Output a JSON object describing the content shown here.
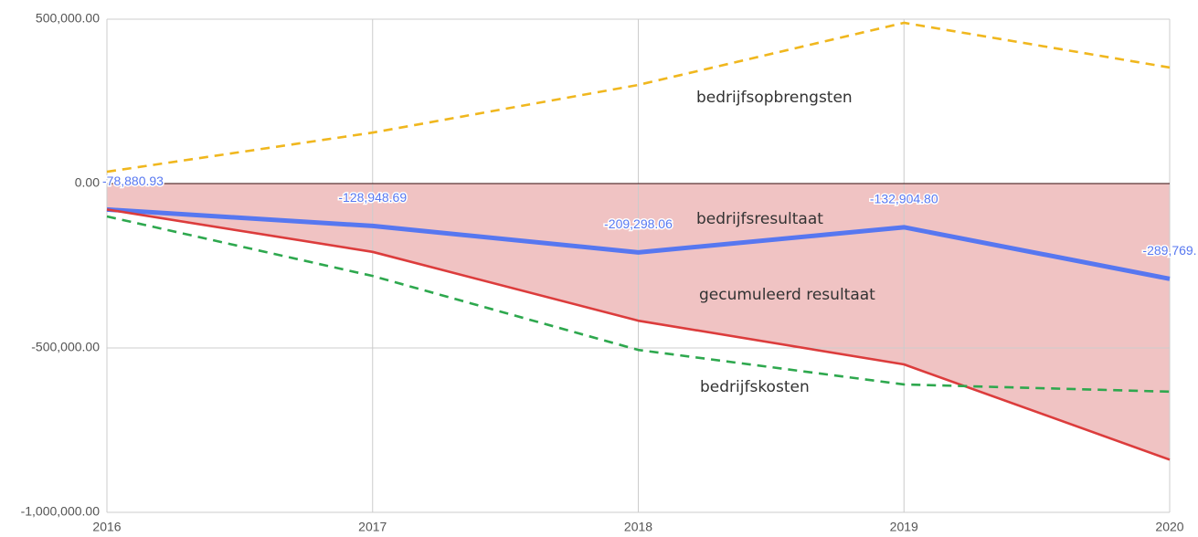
{
  "chart_data": {
    "type": "line",
    "categories": [
      "2016",
      "2017",
      "2018",
      "2019",
      "2020"
    ],
    "series": [
      {
        "name": "bedrijfsopbrengsten",
        "color": "#f0b71e",
        "dashed": true,
        "values": [
          36000,
          155000,
          300000,
          489000,
          353000
        ]
      },
      {
        "name": "bedrijfsresultaat",
        "color": "#5777f0",
        "values": [
          -78880.93,
          -128948.69,
          -209298.06,
          -132904.8,
          -289769
        ],
        "value_labels": [
          "-78,880.93",
          "-128,948.69",
          "-209,298.06",
          "-132,904.80",
          "-289,769."
        ]
      },
      {
        "name": "gecumuleerd resultaat",
        "color": "#dc3c3c",
        "area": true,
        "area_color": "#f0c3c3",
        "values": [
          -78880.93,
          -207829.62,
          -417127.68,
          -550032.48,
          -839801.48
        ]
      },
      {
        "name": "bedrijfskosten",
        "color": "#2ea84e",
        "dashed": true,
        "values": [
          -100000,
          -281000,
          -506000,
          -611000,
          -633000
        ]
      }
    ],
    "ylim": [
      -1000000,
      500000
    ],
    "yticks": [
      {
        "value": 500000,
        "label": "500,000.00"
      },
      {
        "value": 0,
        "label": "0.00"
      },
      {
        "value": -500000,
        "label": "-500,000.00"
      },
      {
        "value": -1000000,
        "label": "-1,000,000.00"
      }
    ],
    "grid": true
  }
}
